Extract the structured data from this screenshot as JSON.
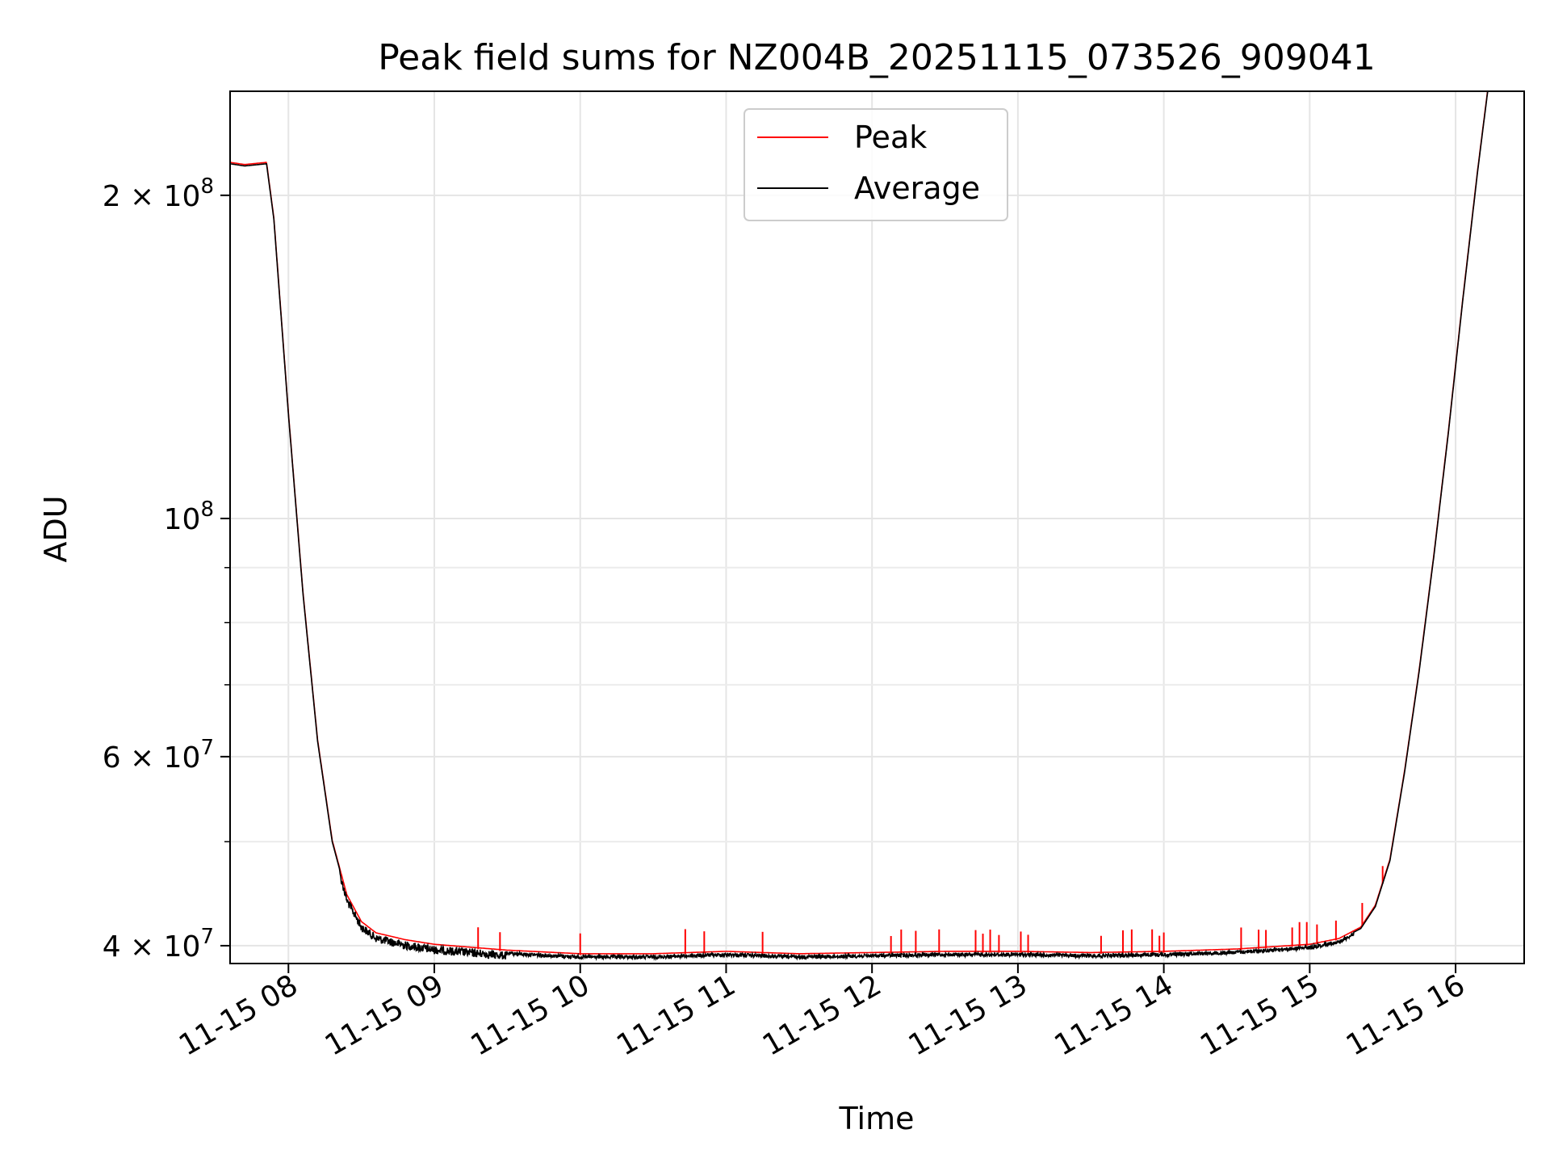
{
  "chart_data": {
    "type": "line",
    "title": "Peak field sums for NZ004B_20251115_073526_909041",
    "xlabel": "Time",
    "ylabel": "ADU",
    "yscale": "log",
    "ylim": [
      38500000,
      250000000
    ],
    "xlim_hours": [
      7.6,
      16.47
    ],
    "x_ticks": [
      "11-15 08",
      "11-15 09",
      "11-15 10",
      "11-15 11",
      "11-15 12",
      "11-15 13",
      "11-15 14",
      "11-15 15",
      "11-15 16"
    ],
    "y_ticks": [
      {
        "value": 40000000,
        "mantissa": "4",
        "exp": "7"
      },
      {
        "value": 60000000,
        "mantissa": "6",
        "exp": "7"
      },
      {
        "value": 100000000,
        "mantissa": "",
        "exp": "8"
      },
      {
        "value": 200000000,
        "mantissa": "2",
        "exp": "8"
      }
    ],
    "grid": true,
    "legend_position": "top-center",
    "series": [
      {
        "name": "Peak",
        "color": "#ff0000",
        "spikes_at_hours": [
          9.3,
          9.45,
          10.0,
          10.72,
          10.85,
          11.25,
          12.13,
          12.2,
          12.3,
          12.46,
          12.71,
          12.76,
          12.81,
          12.87,
          13.02,
          13.07,
          13.57,
          13.72,
          13.78,
          13.92,
          13.97,
          14.0,
          14.53,
          14.65,
          14.7,
          14.88,
          14.93,
          14.98,
          15.05,
          15.18,
          15.36,
          15.5
        ]
      },
      {
        "name": "Average",
        "color": "#000000",
        "points": [
          [
            7.6,
            214000000
          ],
          [
            7.7,
            213000000
          ],
          [
            7.85,
            214000000
          ],
          [
            7.9,
            190000000
          ],
          [
            8.0,
            125000000
          ],
          [
            8.1,
            85000000
          ],
          [
            8.2,
            62000000
          ],
          [
            8.3,
            50000000
          ],
          [
            8.4,
            44500000
          ],
          [
            8.5,
            42000000
          ],
          [
            8.6,
            41000000
          ],
          [
            8.8,
            40400000
          ],
          [
            9.0,
            40000000
          ],
          [
            9.5,
            39500000
          ],
          [
            10.0,
            39200000
          ],
          [
            10.5,
            39200000
          ],
          [
            11.0,
            39400000
          ],
          [
            11.5,
            39200000
          ],
          [
            12.0,
            39300000
          ],
          [
            12.5,
            39400000
          ],
          [
            13.0,
            39400000
          ],
          [
            13.5,
            39300000
          ],
          [
            14.0,
            39400000
          ],
          [
            14.5,
            39600000
          ],
          [
            15.0,
            40000000
          ],
          [
            15.2,
            40500000
          ],
          [
            15.35,
            41500000
          ],
          [
            15.45,
            43500000
          ],
          [
            15.55,
            48000000
          ],
          [
            15.65,
            58000000
          ],
          [
            15.75,
            72000000
          ],
          [
            15.85,
            92000000
          ],
          [
            15.95,
            120000000
          ],
          [
            16.05,
            160000000
          ],
          [
            16.15,
            210000000
          ],
          [
            16.22,
            250000000
          ],
          [
            16.47,
            250000000
          ]
        ]
      }
    ]
  }
}
